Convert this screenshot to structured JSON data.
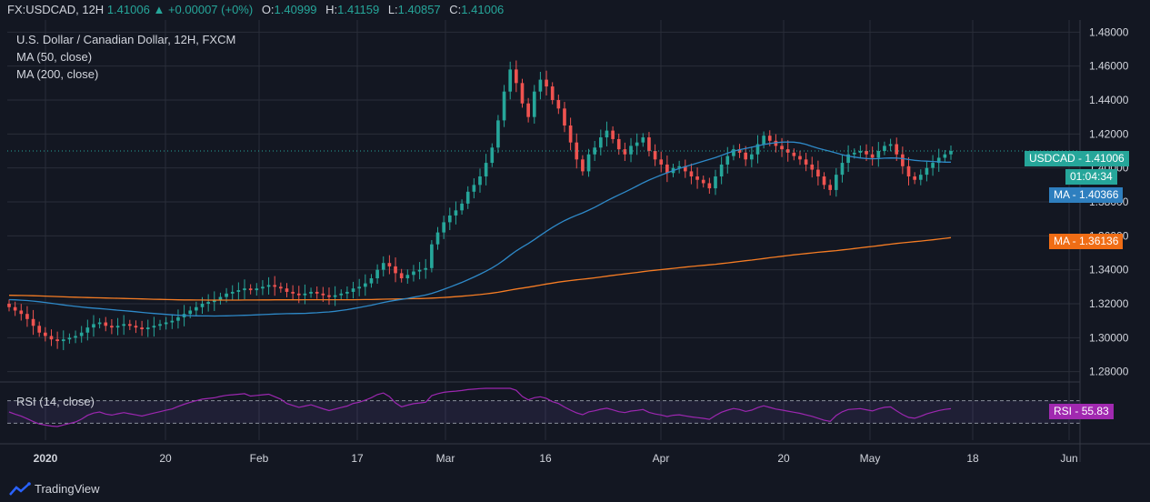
{
  "header": {
    "symbol": "FX:USDCAD, 12H",
    "last": "1.41006",
    "change": "+0.00007 (+0%)",
    "o_label": "O:",
    "o": "1.40999",
    "h_label": "H:",
    "h": "1.41159",
    "l_label": "L:",
    "l": "1.40857",
    "c_label": "C:",
    "c": "1.41006"
  },
  "legend": {
    "title": "U.S. Dollar / Canadian Dollar, 12H, FXCM",
    "ma50": "MA (50, close)",
    "ma200": "MA (200, close)",
    "rsi": "RSI (14, close)"
  },
  "tags": {
    "price_label": "USDCAD",
    "price_value": "1.41006",
    "countdown": "01:04:34",
    "ma50_label": "MA",
    "ma50_value": "1.40366",
    "ma200_label": "MA",
    "ma200_value": "1.36136",
    "rsi_label": "RSI",
    "rsi_value": "55.83"
  },
  "footer": {
    "brand": "TradingView"
  },
  "colors": {
    "background": "#131722",
    "up": "#26a69a",
    "down": "#ef5350",
    "ma50": "#2e89c8",
    "ma200": "#f57c24",
    "rsi": "#9c27b0",
    "price_tag": "#26a69a",
    "ma50_tag": "#2e7fbf",
    "ma200_tag": "#f06d15",
    "rsi_tag": "#a129b0"
  },
  "chart_data": {
    "type": "candlestick",
    "title": "U.S. Dollar / Canadian Dollar, 12H, FXCM",
    "ylim": [
      1.275,
      1.485
    ],
    "y_ticks": [
      "1.48000",
      "1.46000",
      "1.44000",
      "1.42000",
      "1.40000",
      "1.38000",
      "1.36000",
      "1.34000",
      "1.32000",
      "1.30000",
      "1.28000"
    ],
    "x_ticks": [
      "2020",
      "20",
      "Feb",
      "17",
      "Mar",
      "16",
      "Apr",
      "20",
      "May",
      "18",
      "Jun"
    ],
    "grid": true,
    "close_series": [
      1.318,
      1.316,
      1.314,
      1.311,
      1.307,
      1.303,
      1.301,
      1.299,
      1.298,
      1.299,
      1.3,
      1.301,
      1.303,
      1.306,
      1.308,
      1.309,
      1.307,
      1.306,
      1.307,
      1.308,
      1.307,
      1.306,
      1.305,
      1.306,
      1.307,
      1.308,
      1.309,
      1.31,
      1.312,
      1.314,
      1.316,
      1.318,
      1.32,
      1.321,
      1.322,
      1.324,
      1.326,
      1.327,
      1.328,
      1.329,
      1.328,
      1.329,
      1.33,
      1.331,
      1.33,
      1.329,
      1.327,
      1.326,
      1.325,
      1.326,
      1.327,
      1.326,
      1.325,
      1.324,
      1.325,
      1.326,
      1.327,
      1.329,
      1.33,
      1.332,
      1.335,
      1.34,
      1.344,
      1.342,
      1.338,
      1.335,
      1.337,
      1.339,
      1.34,
      1.341,
      1.355,
      1.362,
      1.368,
      1.372,
      1.375,
      1.379,
      1.386,
      1.39,
      1.395,
      1.403,
      1.412,
      1.428,
      1.445,
      1.458,
      1.45,
      1.438,
      1.43,
      1.445,
      1.452,
      1.448,
      1.44,
      1.435,
      1.425,
      1.415,
      1.405,
      1.398,
      1.408,
      1.412,
      1.418,
      1.422,
      1.417,
      1.411,
      1.408,
      1.413,
      1.415,
      1.418,
      1.41,
      1.405,
      1.402,
      1.397,
      1.4,
      1.401,
      1.398,
      1.395,
      1.393,
      1.391,
      1.388,
      1.395,
      1.402,
      1.407,
      1.411,
      1.409,
      1.405,
      1.408,
      1.414,
      1.419,
      1.416,
      1.413,
      1.411,
      1.409,
      1.407,
      1.405,
      1.402,
      1.399,
      1.395,
      1.39,
      1.387,
      1.396,
      1.403,
      1.408,
      1.409,
      1.41,
      1.408,
      1.406,
      1.41,
      1.413,
      1.414,
      1.408,
      1.401,
      1.395,
      1.393,
      1.396,
      1.4,
      1.403,
      1.406,
      1.408,
      1.41
    ],
    "ma50_value": 1.40366,
    "ma200_value": 1.36136,
    "rsi_value": 55.83,
    "rsi_levels": [
      70,
      30
    ]
  }
}
